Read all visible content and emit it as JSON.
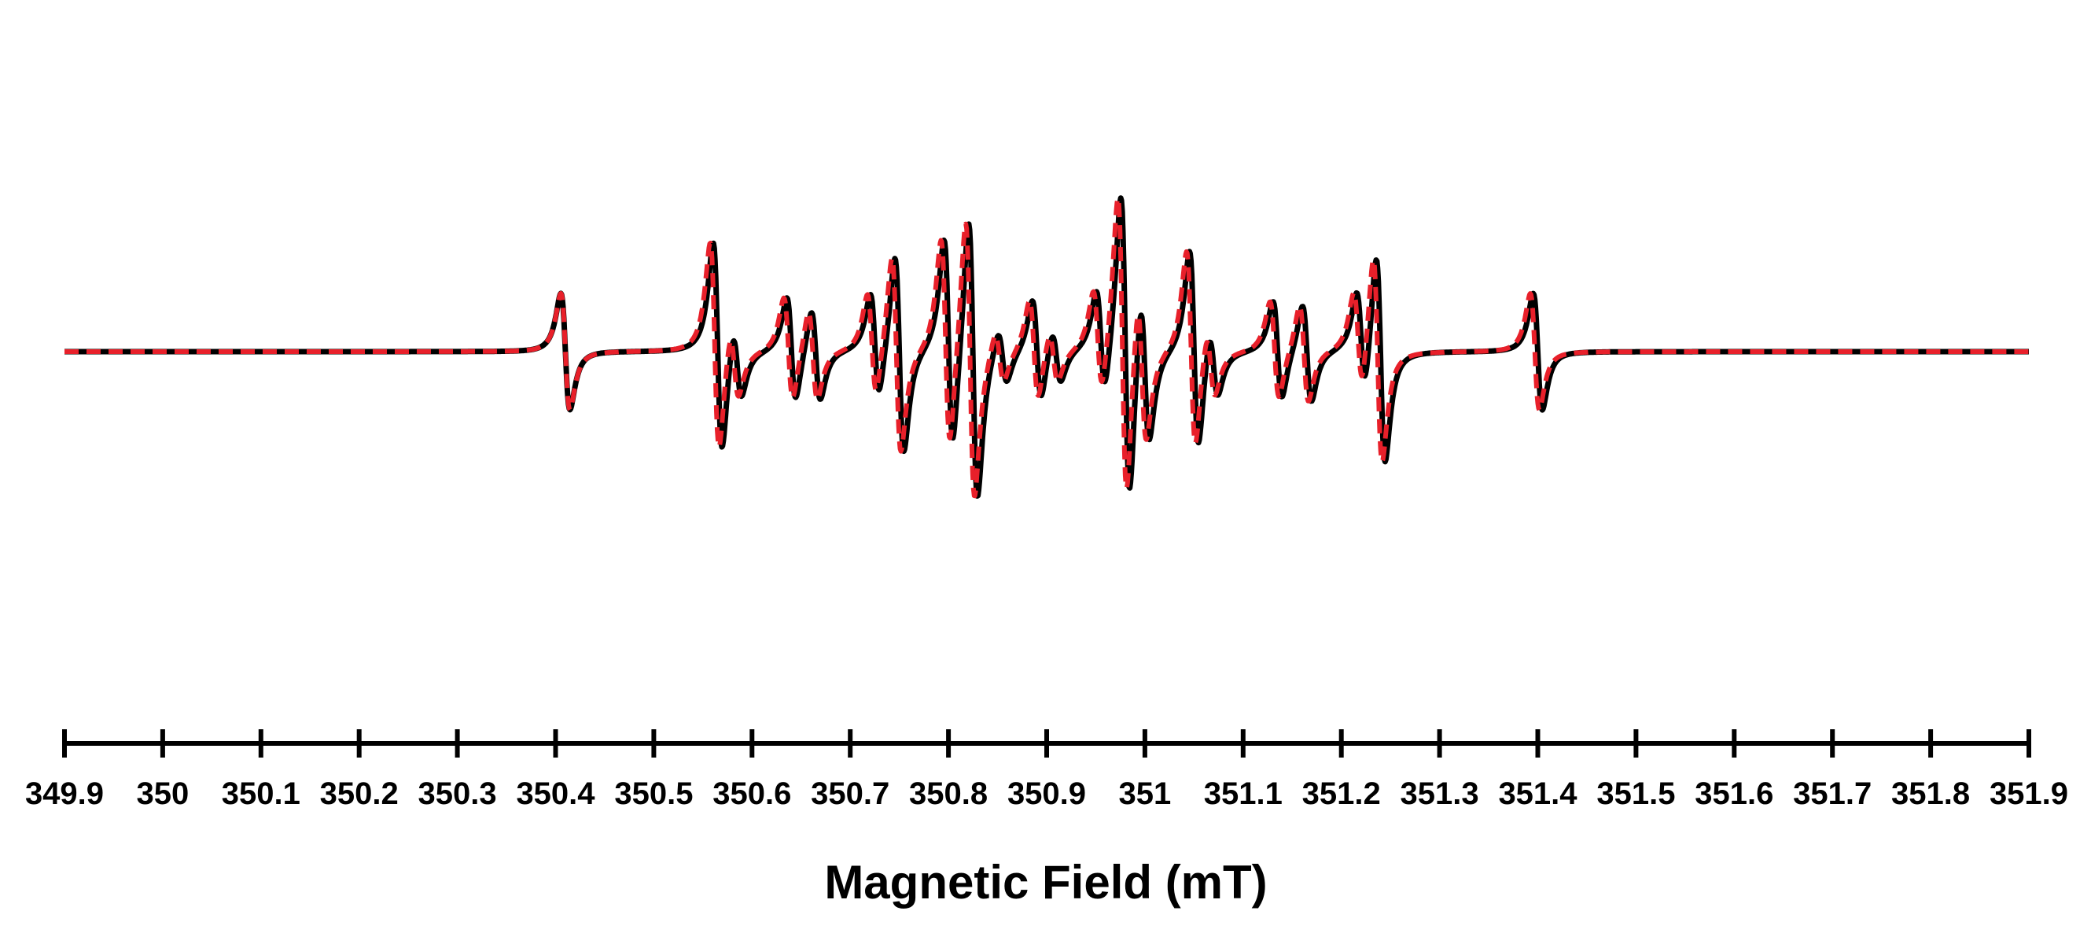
{
  "chart_data": {
    "type": "line",
    "title": "",
    "xlabel": "Magnetic Field (mT)",
    "ylabel": "",
    "xlim": [
      349.9,
      351.9
    ],
    "ylim": [
      -1.0,
      1.0
    ],
    "x_ticks": [
      "349.9",
      "350",
      "350.1",
      "350.2",
      "350.3",
      "350.4",
      "350.5",
      "350.6",
      "350.7",
      "350.8",
      "350.9",
      "351",
      "351.1",
      "351.2",
      "351.3",
      "351.4",
      "351.5",
      "351.6",
      "351.7",
      "351.8",
      "351.9"
    ],
    "y_axis_visible": false,
    "grid": false,
    "legend": "none",
    "series": [
      {
        "style": "solid",
        "color": "#000000",
        "lines": [
          {
            "x": 350.41,
            "a": 0.37
          },
          {
            "x": 350.565,
            "a": 0.67
          },
          {
            "x": 350.585,
            "a": 0.23
          },
          {
            "x": 350.64,
            "a": 0.33
          },
          {
            "x": 350.665,
            "a": 0.29
          },
          {
            "x": 350.725,
            "a": 0.33
          },
          {
            "x": 350.75,
            "a": 0.63
          },
          {
            "x": 350.8,
            "a": 0.67
          },
          {
            "x": 350.825,
            "a": 0.9
          },
          {
            "x": 350.855,
            "a": 0.17
          },
          {
            "x": 350.89,
            "a": 0.32
          },
          {
            "x": 350.91,
            "a": 0.17
          },
          {
            "x": 350.955,
            "a": 0.33
          },
          {
            "x": 350.98,
            "a": 0.98
          },
          {
            "x": 351.0,
            "a": 0.48
          },
          {
            "x": 351.05,
            "a": 0.63
          },
          {
            "x": 351.07,
            "a": 0.22
          },
          {
            "x": 351.135,
            "a": 0.31
          },
          {
            "x": 351.165,
            "a": 0.31
          },
          {
            "x": 351.22,
            "a": 0.32
          },
          {
            "x": 351.24,
            "a": 0.67
          },
          {
            "x": 351.4,
            "a": 0.37
          }
        ]
      },
      {
        "style": "dashed",
        "color": "#e8202a",
        "lines": [
          {
            "x": 350.41,
            "a": 0.37
          },
          {
            "x": 350.562,
            "a": 0.67
          },
          {
            "x": 350.582,
            "a": 0.23
          },
          {
            "x": 350.637,
            "a": 0.33
          },
          {
            "x": 350.662,
            "a": 0.29
          },
          {
            "x": 350.722,
            "a": 0.33
          },
          {
            "x": 350.747,
            "a": 0.63
          },
          {
            "x": 350.797,
            "a": 0.67
          },
          {
            "x": 350.822,
            "a": 0.9
          },
          {
            "x": 350.852,
            "a": 0.17
          },
          {
            "x": 350.887,
            "a": 0.32
          },
          {
            "x": 350.907,
            "a": 0.17
          },
          {
            "x": 350.952,
            "a": 0.33
          },
          {
            "x": 350.977,
            "a": 0.98
          },
          {
            "x": 350.997,
            "a": 0.48
          },
          {
            "x": 351.047,
            "a": 0.63
          },
          {
            "x": 351.067,
            "a": 0.22
          },
          {
            "x": 351.132,
            "a": 0.31
          },
          {
            "x": 351.162,
            "a": 0.31
          },
          {
            "x": 351.217,
            "a": 0.32
          },
          {
            "x": 351.237,
            "a": 0.67
          },
          {
            "x": 351.397,
            "a": 0.37
          }
        ]
      }
    ]
  }
}
